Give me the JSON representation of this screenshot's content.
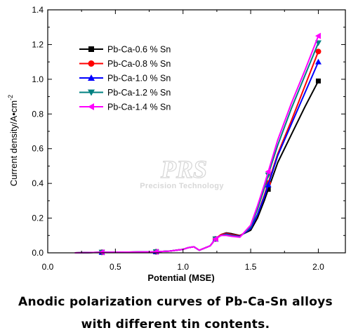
{
  "chart_data": {
    "type": "line",
    "xlabel": "Potential (MSE)",
    "ylabel": "Current density/A•cm",
    "ylabel_sup": "-2",
    "xlim": [
      0.0,
      2.2
    ],
    "ylim": [
      0.0,
      1.4
    ],
    "x_ticks": [
      "0.0",
      "0.5",
      "1.0",
      "1.5",
      "2.0"
    ],
    "y_ticks": [
      "0.0",
      "0.2",
      "0.4",
      "0.6",
      "0.8",
      "1.0",
      "1.2",
      "1.4"
    ],
    "legend_position": "top-left",
    "grid": false,
    "series": [
      {
        "name": "Pb-Ca-0.6 % Sn",
        "color": "#000000",
        "marker": "square",
        "x": [
          0.2,
          0.4,
          0.6,
          0.8,
          0.9,
          1.0,
          1.04,
          1.08,
          1.12,
          1.2,
          1.24,
          1.28,
          1.32,
          1.36,
          1.42,
          1.5,
          1.55,
          1.6,
          1.65,
          1.7,
          1.8,
          1.9,
          2.0
        ],
        "y": [
          0.0,
          0.003,
          0.004,
          0.006,
          0.01,
          0.02,
          0.03,
          0.035,
          0.015,
          0.04,
          0.08,
          0.105,
          0.115,
          0.11,
          0.1,
          0.13,
          0.2,
          0.3,
          0.41,
          0.52,
          0.68,
          0.84,
          0.99
        ],
        "marker_x": [
          0.4,
          0.8,
          1.24,
          1.63
        ]
      },
      {
        "name": "Pb-Ca-0.8 % Sn",
        "color": "#ff0000",
        "marker": "circle",
        "x": [
          0.2,
          0.4,
          0.6,
          0.8,
          0.9,
          1.0,
          1.04,
          1.08,
          1.12,
          1.2,
          1.24,
          1.28,
          1.32,
          1.36,
          1.42,
          1.5,
          1.55,
          1.6,
          1.65,
          1.7,
          1.8,
          1.9,
          2.0
        ],
        "y": [
          0.0,
          0.003,
          0.004,
          0.006,
          0.01,
          0.02,
          0.03,
          0.035,
          0.015,
          0.04,
          0.08,
          0.105,
          0.112,
          0.105,
          0.098,
          0.14,
          0.22,
          0.33,
          0.45,
          0.57,
          0.76,
          0.96,
          1.16
        ],
        "marker_x": [
          0.4,
          0.8,
          1.24,
          1.63
        ]
      },
      {
        "name": "Pb-Ca-1.0 % Sn",
        "color": "#0000ff",
        "marker": "triangle-up",
        "x": [
          0.2,
          0.4,
          0.6,
          0.8,
          0.9,
          1.0,
          1.04,
          1.08,
          1.12,
          1.2,
          1.24,
          1.28,
          1.32,
          1.36,
          1.42,
          1.5,
          1.55,
          1.6,
          1.65,
          1.7,
          1.8,
          1.9,
          2.0
        ],
        "y": [
          0.0,
          0.003,
          0.004,
          0.006,
          0.01,
          0.02,
          0.03,
          0.035,
          0.015,
          0.04,
          0.08,
          0.1,
          0.108,
          0.1,
          0.095,
          0.14,
          0.22,
          0.32,
          0.44,
          0.56,
          0.74,
          0.92,
          1.1
        ],
        "marker_x": [
          0.4,
          0.8,
          1.24,
          1.63
        ]
      },
      {
        "name": "Pb-Ca-1.2 % Sn",
        "color": "#008080",
        "marker": "triangle-down",
        "x": [
          0.2,
          0.4,
          0.6,
          0.8,
          0.9,
          1.0,
          1.04,
          1.08,
          1.12,
          1.2,
          1.24,
          1.28,
          1.32,
          1.36,
          1.42,
          1.5,
          1.55,
          1.6,
          1.65,
          1.7,
          1.8,
          1.9,
          2.0
        ],
        "y": [
          0.0,
          0.003,
          0.004,
          0.006,
          0.01,
          0.02,
          0.03,
          0.035,
          0.015,
          0.04,
          0.08,
          0.1,
          0.105,
          0.098,
          0.092,
          0.15,
          0.25,
          0.37,
          0.5,
          0.62,
          0.83,
          1.02,
          1.21
        ],
        "marker_x": [
          0.4,
          0.8,
          1.24,
          1.63
        ]
      },
      {
        "name": "Pb-Ca-1.4 % Sn",
        "color": "#ff00ff",
        "marker": "triangle-left",
        "x": [
          0.2,
          0.4,
          0.6,
          0.8,
          0.9,
          1.0,
          1.04,
          1.08,
          1.12,
          1.2,
          1.24,
          1.28,
          1.32,
          1.36,
          1.42,
          1.5,
          1.55,
          1.6,
          1.65,
          1.7,
          1.8,
          1.9,
          2.0
        ],
        "y": [
          0.0,
          0.003,
          0.004,
          0.006,
          0.01,
          0.02,
          0.03,
          0.035,
          0.015,
          0.04,
          0.08,
          0.1,
          0.1,
          0.095,
          0.09,
          0.16,
          0.27,
          0.39,
          0.52,
          0.65,
          0.86,
          1.05,
          1.25
        ],
        "marker_x": [
          0.4,
          0.8,
          1.24,
          1.63
        ]
      }
    ]
  },
  "watermark": {
    "main": "PRS",
    "sub": "Precision Technology"
  },
  "caption": {
    "line1": "Anodic polarization curves of Pb-Ca-Sn alloys",
    "line2": "with different tin contents."
  }
}
